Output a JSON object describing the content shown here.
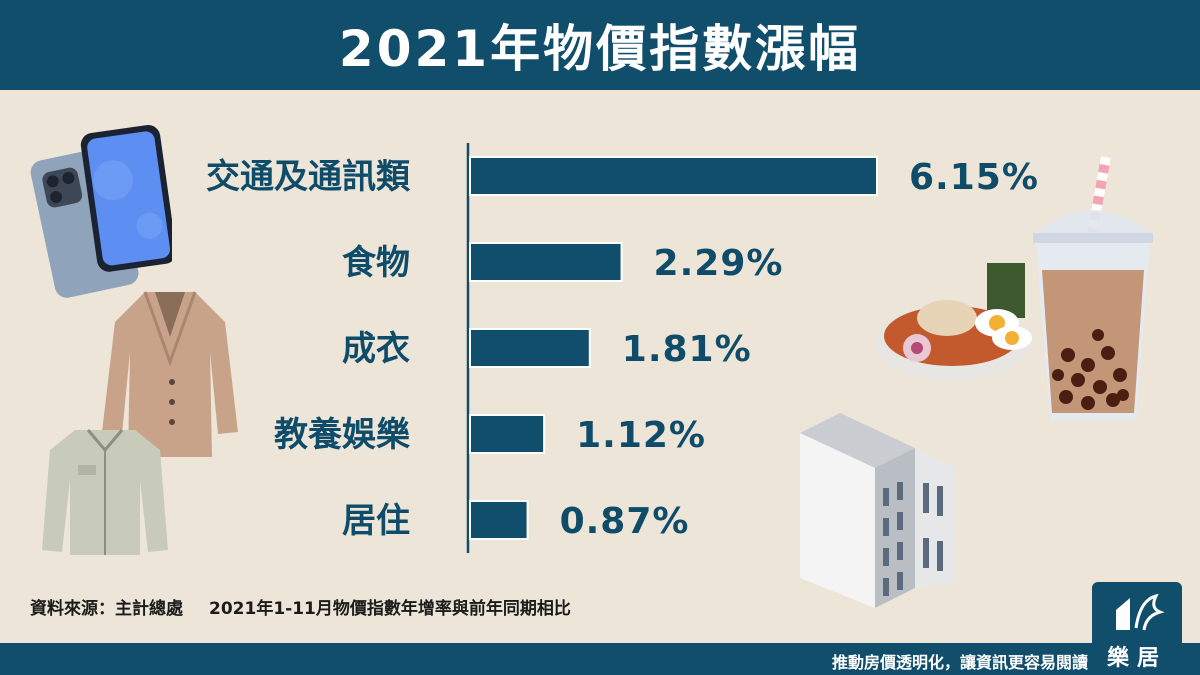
{
  "title": "2021年物價指數漲幅",
  "chart_data": {
    "type": "bar",
    "orientation": "horizontal",
    "categories": [
      "交通及通訊類",
      "食物",
      "成衣",
      "教養娛樂",
      "居住"
    ],
    "values": [
      6.15,
      2.29,
      1.81,
      1.12,
      0.87
    ],
    "value_labels": [
      "6.15%",
      "2.29%",
      "1.81%",
      "1.12%",
      "0.87%"
    ],
    "title": "2021年物價指數漲幅",
    "xlabel": "",
    "ylabel": "",
    "xlim": [
      0,
      6.15
    ],
    "grid": false,
    "legend": "none",
    "bar_color": "#104e6c"
  },
  "source": {
    "label": "資料來源：主計總處",
    "note": "2021年1-11月物價指數年增率與前年同期相比"
  },
  "footer": {
    "slogan": "推動房價透明化，讓資訊更容易閱讀",
    "logo_text": "樂居"
  },
  "illustrations": [
    "smartphone-icon",
    "coat-icon",
    "shirt-icon",
    "ramen-bowl-icon",
    "bubble-tea-icon",
    "building-icon"
  ],
  "colors": {
    "primary": "#104e6c",
    "background": "#ede5d8",
    "text": "#0f4c69"
  }
}
